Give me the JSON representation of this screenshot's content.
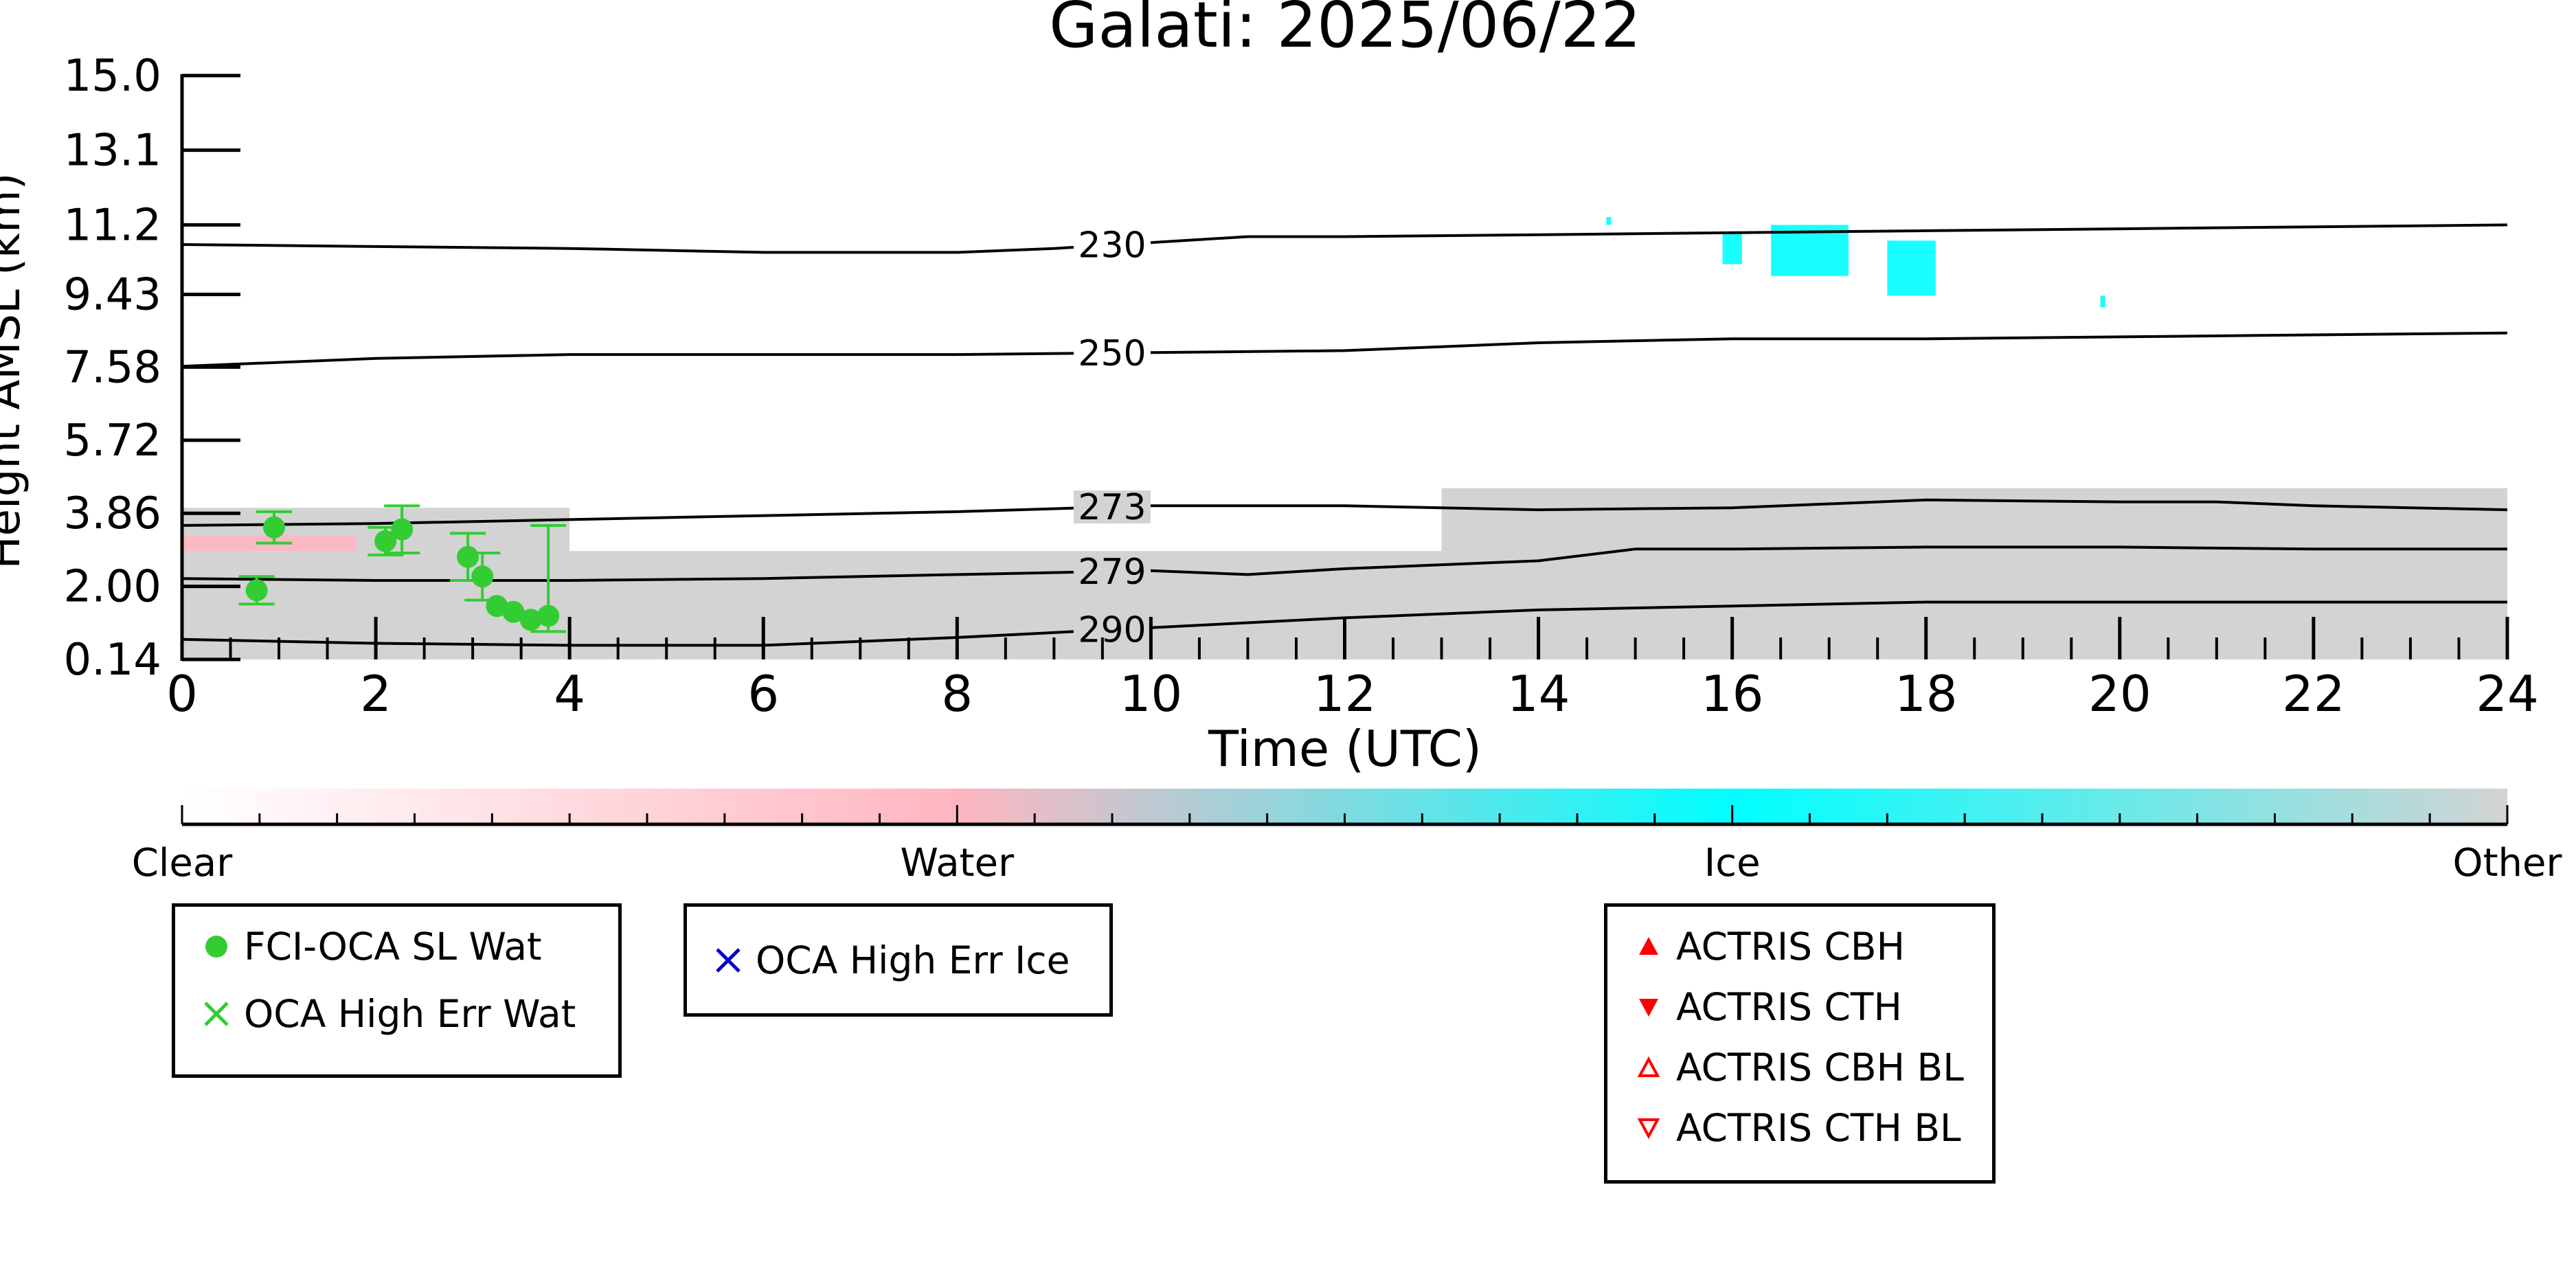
{
  "chart_data": {
    "type": "scatter",
    "title": "Galati: 2025/06/22",
    "xlabel": "Time (UTC)",
    "ylabel": "Height AMSL (km)",
    "xlim": [
      0,
      24
    ],
    "ylim": [
      0.14,
      15.0
    ],
    "x_ticks": [
      "0",
      "2",
      "4",
      "6",
      "8",
      "10",
      "12",
      "14",
      "16",
      "18",
      "20",
      "22",
      "24"
    ],
    "y_ticks": [
      "0.14",
      "2.00",
      "3.86",
      "5.72",
      "7.58",
      "9.43",
      "11.2",
      "13.1",
      "15.0"
    ],
    "grid": false,
    "background_colors": {
      "clear": "#ffffff",
      "water": "#ffb6c1",
      "ice": "#00ffff",
      "other": "#d3d3d3"
    },
    "cloud_mask": [
      {
        "class": "Other",
        "x_start": 0.0,
        "x_end": 24.0,
        "y_bottom": 0.14,
        "y_top": 2.9
      },
      {
        "class": "Other",
        "x_start": 0.0,
        "x_end": 4.0,
        "y_bottom": 2.9,
        "y_top": 4.0
      },
      {
        "class": "Other",
        "x_start": 13.0,
        "x_end": 24.0,
        "y_bottom": 2.9,
        "y_top": 4.5
      },
      {
        "class": "Water",
        "x_start": 0.0,
        "x_end": 1.8,
        "y_bottom": 2.9,
        "y_top": 3.3
      },
      {
        "class": "Ice",
        "x_start": 14.7,
        "x_end": 14.75,
        "y_bottom": 11.2,
        "y_top": 11.4
      },
      {
        "class": "Ice",
        "x_start": 15.9,
        "x_end": 16.1,
        "y_bottom": 10.2,
        "y_top": 11.0
      },
      {
        "class": "Ice",
        "x_start": 16.4,
        "x_end": 17.2,
        "y_bottom": 9.9,
        "y_top": 11.2
      },
      {
        "class": "Ice",
        "x_start": 17.6,
        "x_end": 18.1,
        "y_bottom": 9.4,
        "y_top": 10.8
      },
      {
        "class": "Ice",
        "x_start": 19.8,
        "x_end": 19.85,
        "y_bottom": 9.1,
        "y_top": 9.4
      }
    ],
    "isotherms": [
      {
        "label": "230",
        "x": [
          0,
          4,
          6,
          7,
          8,
          9,
          10,
          11,
          12,
          14,
          16,
          18,
          20,
          22,
          24
        ],
        "y": [
          10.7,
          10.6,
          10.5,
          10.5,
          10.5,
          10.6,
          10.75,
          10.9,
          10.9,
          10.95,
          11.0,
          11.05,
          11.1,
          11.15,
          11.2
        ]
      },
      {
        "label": "250",
        "x": [
          0,
          2,
          4,
          6,
          8,
          10,
          12,
          13,
          14,
          16,
          18,
          20,
          22,
          24
        ],
        "y": [
          7.6,
          7.8,
          7.9,
          7.9,
          7.9,
          7.95,
          8.0,
          8.1,
          8.2,
          8.3,
          8.3,
          8.35,
          8.4,
          8.45
        ]
      },
      {
        "label": "273",
        "x": [
          0,
          2,
          4,
          6,
          8,
          10,
          12,
          14,
          16,
          18,
          20,
          21,
          22,
          24
        ],
        "y": [
          3.55,
          3.6,
          3.7,
          3.8,
          3.9,
          4.05,
          4.05,
          3.95,
          4.0,
          4.2,
          4.15,
          4.15,
          4.05,
          3.95
        ]
      },
      {
        "label": "279",
        "x": [
          0,
          2,
          4,
          6,
          8,
          10,
          11,
          12,
          14,
          15,
          16,
          18,
          20,
          22,
          24
        ],
        "y": [
          2.2,
          2.15,
          2.15,
          2.2,
          2.3,
          2.4,
          2.3,
          2.45,
          2.65,
          2.95,
          2.95,
          3.0,
          3.0,
          2.95,
          2.95
        ]
      },
      {
        "label": "290",
        "x": [
          0,
          2,
          4,
          6,
          8,
          10,
          12,
          14,
          16,
          18,
          20,
          22,
          24
        ],
        "y": [
          0.65,
          0.55,
          0.5,
          0.5,
          0.7,
          0.95,
          1.2,
          1.4,
          1.5,
          1.6,
          1.6,
          1.6,
          1.6
        ]
      }
    ],
    "series": [
      {
        "name": "FCI-OCA SL Wat",
        "color": "#33cc33",
        "points": [
          {
            "x": 0.77,
            "y": 1.9,
            "err": 0.35
          },
          {
            "x": 0.95,
            "y": 3.5,
            "err": 0.4
          },
          {
            "x": 2.1,
            "y": 3.15,
            "err": 0.35
          },
          {
            "x": 2.27,
            "y": 3.45,
            "err": 0.6
          },
          {
            "x": 2.95,
            "y": 2.75,
            "err": 0.6
          },
          {
            "x": 3.1,
            "y": 2.25,
            "err": 0.6
          },
          {
            "x": 3.25,
            "y": 1.5
          },
          {
            "x": 3.42,
            "y": 1.35
          },
          {
            "x": 3.6,
            "y": 1.15
          },
          {
            "x": 3.78,
            "y": 1.25,
            "err_low": 0.4,
            "err_high": 2.3
          }
        ]
      },
      {
        "name": "OCA High Err Wat",
        "color": "#33cc33",
        "points": []
      },
      {
        "name": "OCA High Err Ice",
        "color": "#0000cc",
        "points": []
      },
      {
        "name": "ACTRIS CBH",
        "color": "#ff0000",
        "points": []
      },
      {
        "name": "ACTRIS CTH",
        "color": "#ff0000",
        "points": []
      },
      {
        "name": "ACTRIS CBH BL",
        "color": "#ff0000",
        "points": []
      },
      {
        "name": "ACTRIS CTH BL",
        "color": "#ff0000",
        "points": []
      }
    ],
    "colorbar": {
      "labels": [
        "Clear",
        "Water",
        "Ice",
        "Other"
      ],
      "stops": [
        "#ffffff",
        "#ffb6c1",
        "#00ffff",
        "#d3d3d3"
      ]
    },
    "legends": [
      {
        "entries": [
          {
            "label": "FCI-OCA SL Wat",
            "marker": "filled-circle",
            "color": "#33cc33"
          },
          {
            "label": "OCA High Err Wat",
            "marker": "x",
            "color": "#33cc33"
          }
        ]
      },
      {
        "entries": [
          {
            "label": "OCA High Err Ice",
            "marker": "x",
            "color": "#0000cc"
          }
        ]
      },
      {
        "entries": [
          {
            "label": "ACTRIS CBH",
            "marker": "triangle-up-filled",
            "color": "#ff0000"
          },
          {
            "label": "ACTRIS CTH",
            "marker": "triangle-down-filled",
            "color": "#ff0000"
          },
          {
            "label": "ACTRIS CBH BL",
            "marker": "triangle-up-open",
            "color": "#ff0000"
          },
          {
            "label": "ACTRIS CTH BL",
            "marker": "triangle-down-open",
            "color": "#ff0000"
          }
        ]
      }
    ]
  }
}
